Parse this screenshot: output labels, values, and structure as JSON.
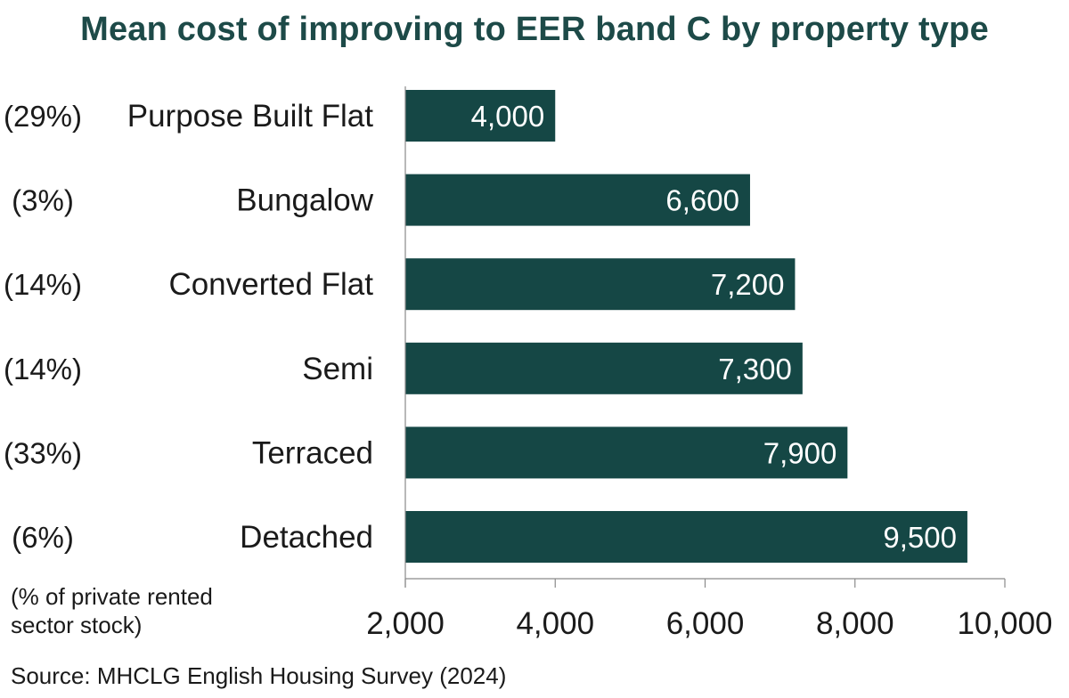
{
  "chart_data": {
    "type": "bar",
    "orientation": "horizontal",
    "title": "Mean cost of improving to EER band C by property type",
    "categories": [
      "Purpose Built Flat",
      "Bungalow",
      "Converted Flat",
      "Semi",
      "Terraced",
      "Detached"
    ],
    "shares": [
      "(29%)",
      "(3%)",
      "(14%)",
      "(14%)",
      "(33%)",
      "(6%)"
    ],
    "values": [
      4000,
      6600,
      7200,
      7300,
      7900,
      9500
    ],
    "value_labels": [
      "4,000",
      "6,600",
      "7,200",
      "7,300",
      "7,900",
      "9,500"
    ],
    "xlim": [
      2000,
      10000
    ],
    "x_ticks": [
      2000,
      4000,
      6000,
      8000,
      10000
    ],
    "x_tick_labels": [
      "2,000",
      "4,000",
      "6,000",
      "8,000",
      "10,000"
    ],
    "grid": false,
    "bar_color": "#154745",
    "title_color": "#1d4a48"
  },
  "footnote": "(% of private rented sector stock)",
  "source": "Source: MHCLG English Housing Survey (2024)"
}
